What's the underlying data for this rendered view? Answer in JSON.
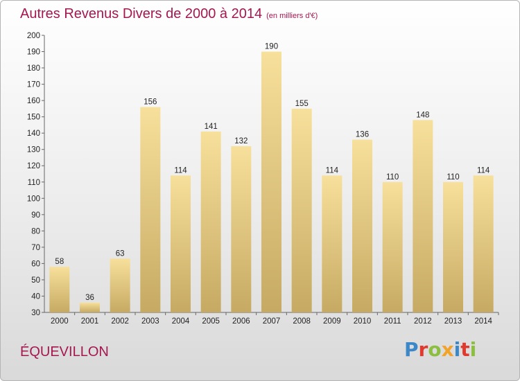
{
  "header": {
    "title": "Autres Revenus Divers de 2000 à 2014",
    "subtitle": "(en milliers d'€)"
  },
  "footer": {
    "location": "ÉQUEVILLON",
    "logo_text": "Proxiti"
  },
  "logo_colors": [
    "#3b87c8",
    "#e0392e",
    "#8cbf3f",
    "#f1a32a",
    "#3b87c8",
    "#e0392e",
    "#8cbf3f"
  ],
  "colors": {
    "bar_light": "#f6df9a",
    "bar_dark": "#c9ae68",
    "title": "#a4174f"
  },
  "chart_data": {
    "type": "bar",
    "categories": [
      "2000",
      "2001",
      "2002",
      "2003",
      "2004",
      "2005",
      "2006",
      "2007",
      "2008",
      "2009",
      "2010",
      "2011",
      "2012",
      "2013",
      "2014"
    ],
    "values": [
      58,
      36,
      63,
      156,
      114,
      141,
      132,
      190,
      155,
      114,
      136,
      110,
      148,
      110,
      114
    ],
    "title": "Autres Revenus Divers de 2000 à 2014",
    "xlabel": "",
    "ylabel": "",
    "ylim": [
      30,
      200
    ],
    "yticks": [
      30,
      40,
      50,
      60,
      70,
      80,
      90,
      100,
      110,
      120,
      130,
      140,
      150,
      160,
      170,
      180,
      190,
      200
    ],
    "grid": false,
    "data_labels": true
  }
}
